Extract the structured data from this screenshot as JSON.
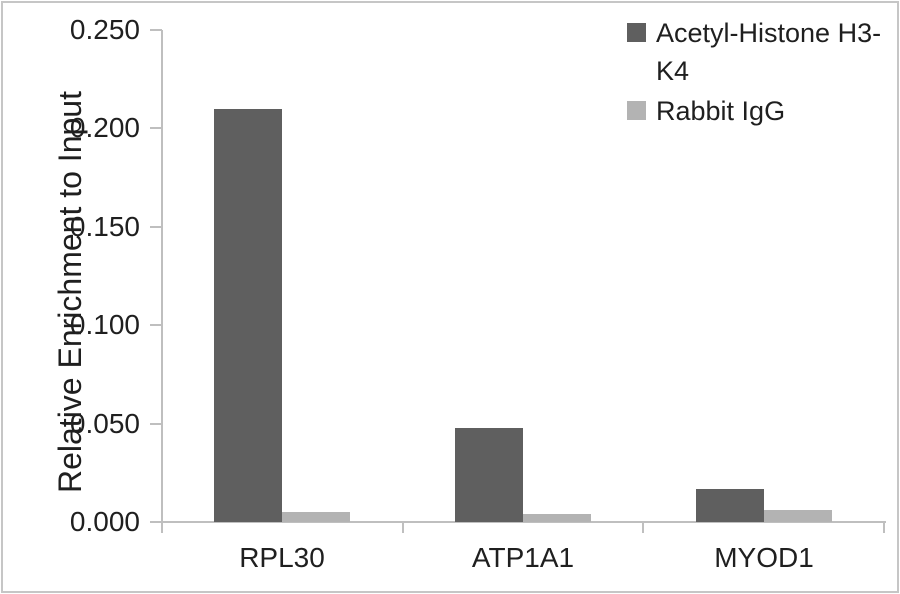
{
  "chart_data": {
    "type": "bar",
    "title": "",
    "ylabel": "Relative Enrichment to Input",
    "xlabel": "",
    "categories": [
      "RPL30",
      "ATP1A1",
      "MYOD1"
    ],
    "series": [
      {
        "name": "Acetyl-Histone H3-K4",
        "color": "#5f5f5f",
        "values": [
          0.21,
          0.048,
          0.017
        ]
      },
      {
        "name": "Rabbit IgG",
        "color": "#b3b3b3",
        "values": [
          0.005,
          0.004,
          0.006
        ]
      }
    ],
    "ylim": [
      0,
      0.25
    ],
    "ytick_values": [
      0,
      0.05,
      0.1,
      0.15,
      0.2,
      0.25
    ],
    "ytick_labels": [
      "0.000",
      "0.050",
      "0.100",
      "0.150",
      "0.200",
      "0.250"
    ],
    "grid": false,
    "legend_position": "top-right",
    "axis_color": "#bfbfbf",
    "text_color": "#1f1f1f"
  }
}
